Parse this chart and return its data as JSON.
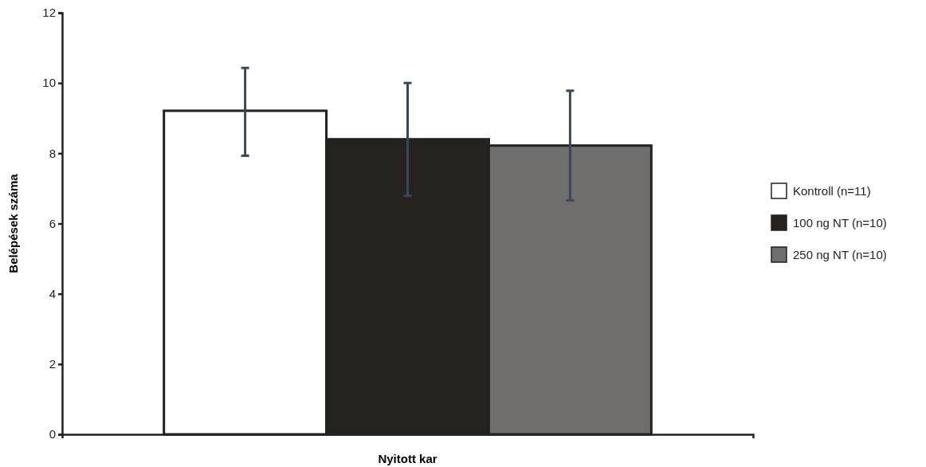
{
  "chart_data": {
    "type": "bar",
    "xlabel": "Nyitott kar",
    "ylabel": "Belépések száma",
    "categories": [
      null
    ],
    "ylim": [
      0,
      12
    ],
    "yticks": [
      0,
      2,
      4,
      6,
      8,
      10,
      12
    ],
    "legend": "right",
    "grid": false,
    "series": [
      {
        "name": "Kontroll (n=11)",
        "color": "#ffffff",
        "values": [
          9.21
        ],
        "errors": [
          [
            7.93,
            10.43
          ]
        ]
      },
      {
        "name": "100 ng NT (n=10)",
        "color": "#26231f",
        "values": [
          8.4
        ],
        "errors": [
          [
            6.79,
            10.0
          ]
        ]
      },
      {
        "name": "250 ng NT (n=10)",
        "color": "#706e6c",
        "values": [
          8.22
        ],
        "errors": [
          [
            6.66,
            9.78
          ]
        ]
      }
    ]
  }
}
